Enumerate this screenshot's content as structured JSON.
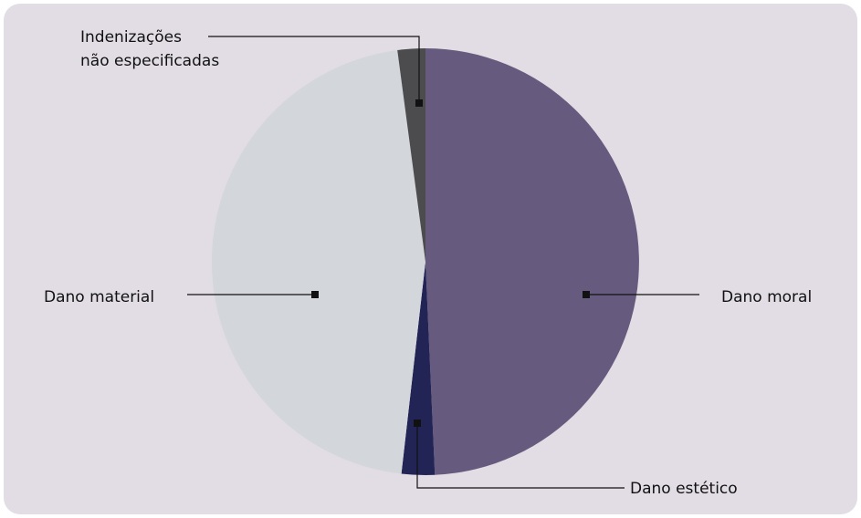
{
  "chart_data": {
    "type": "pie",
    "start": "top",
    "direction": "clockwise",
    "slices": [
      {
        "label": "Dano moral",
        "value": 49.3,
        "color": "#665a7e"
      },
      {
        "label": "Dano estético",
        "value": 2.5,
        "color": "#232456"
      },
      {
        "label": "Dano material",
        "value": 46.1,
        "color": "#d3d6da"
      },
      {
        "label": "Indenizações não especificadas",
        "value": 2.1,
        "color": "#4c4c4e"
      }
    ],
    "labels": {
      "dano_moral": "Dano moral",
      "dano_estetico": "Dano estético",
      "dano_material": "Dano material",
      "indenizacoes_line1": "Indenizações",
      "indenizacoes_line2": "não especificadas"
    },
    "background": "#e2dde5",
    "legend": "none"
  }
}
